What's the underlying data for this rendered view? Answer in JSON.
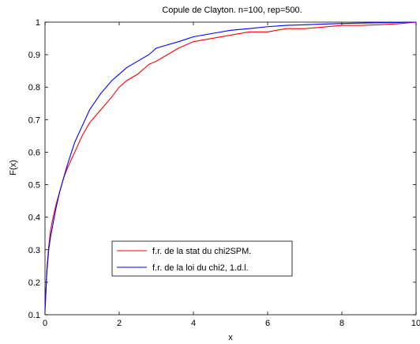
{
  "chart_data": {
    "type": "line",
    "title": "Copule de Clayton. n=100, rep=500.",
    "xlabel": "x",
    "ylabel": "F(x)",
    "xlim": [
      0,
      10
    ],
    "ylim": [
      0.1,
      1
    ],
    "xticks": [
      "0",
      "2",
      "4",
      "6",
      "8",
      "10"
    ],
    "yticks": [
      "0.1",
      "0.2",
      "0.3",
      "0.4",
      "0.5",
      "0.6",
      "0.7",
      "0.8",
      "0.9",
      "1"
    ],
    "grid": false,
    "legend_position": "lower-center",
    "series": [
      {
        "name": "f.r. de la stat du chi2SPM.",
        "color": "#ff0000",
        "x": [
          0.0,
          0.02,
          0.05,
          0.1,
          0.15,
          0.2,
          0.3,
          0.4,
          0.5,
          0.6,
          0.8,
          1.0,
          1.2,
          1.5,
          1.8,
          2.0,
          2.2,
          2.5,
          2.8,
          3.0,
          3.3,
          3.6,
          4.0,
          4.5,
          5.0,
          5.5,
          6.0,
          6.5,
          7.0,
          7.5,
          8.0,
          8.5,
          9.0,
          9.5,
          10.0
        ],
        "y": [
          0.12,
          0.16,
          0.24,
          0.31,
          0.36,
          0.39,
          0.44,
          0.48,
          0.52,
          0.55,
          0.6,
          0.65,
          0.69,
          0.73,
          0.77,
          0.8,
          0.82,
          0.84,
          0.87,
          0.88,
          0.9,
          0.92,
          0.94,
          0.95,
          0.96,
          0.97,
          0.97,
          0.98,
          0.98,
          0.985,
          0.99,
          0.99,
          0.992,
          0.995,
          1.0
        ]
      },
      {
        "name": "f.r. de la loi du chi2, 1.d.l.",
        "color": "#0000ff",
        "x": [
          0.0,
          0.02,
          0.05,
          0.1,
          0.15,
          0.2,
          0.3,
          0.4,
          0.5,
          0.6,
          0.8,
          1.0,
          1.2,
          1.5,
          1.8,
          2.0,
          2.2,
          2.5,
          2.8,
          3.0,
          3.3,
          3.6,
          4.0,
          4.5,
          5.0,
          5.5,
          6.0,
          6.5,
          7.0,
          7.5,
          8.0,
          8.5,
          9.0,
          9.5,
          10.0
        ],
        "y": [
          0.11,
          0.16,
          0.23,
          0.3,
          0.34,
          0.37,
          0.43,
          0.48,
          0.52,
          0.56,
          0.63,
          0.68,
          0.73,
          0.78,
          0.82,
          0.84,
          0.86,
          0.88,
          0.9,
          0.92,
          0.93,
          0.94,
          0.955,
          0.965,
          0.975,
          0.98,
          0.986,
          0.99,
          0.992,
          0.994,
          0.996,
          0.997,
          0.998,
          0.999,
          1.0
        ]
      }
    ]
  }
}
